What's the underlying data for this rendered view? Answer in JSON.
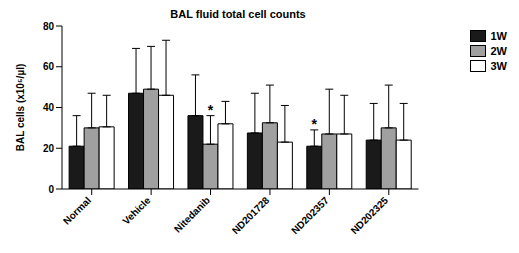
{
  "chart_data": {
    "type": "bar",
    "title": "BAL fluid total cell counts",
    "y_label": "BAL cells (x10⁵/µl)",
    "categories": [
      "Normal",
      "Vehicle",
      "Nitedanib",
      "ND201728",
      "ND202357",
      "ND202325"
    ],
    "series": [
      {
        "name": "1W",
        "color": "#1a1a1a",
        "values": [
          21,
          47,
          36,
          27.5,
          21,
          24
        ],
        "errors": [
          15,
          22,
          20,
          19.5,
          8,
          18
        ]
      },
      {
        "name": "2W",
        "color": "#a0a0a0",
        "values": [
          30,
          49,
          22,
          32.5,
          27,
          30
        ],
        "errors": [
          17,
          21,
          14,
          18.5,
          22,
          21
        ]
      },
      {
        "name": "3W",
        "color": "#ffffff",
        "values": [
          30.5,
          46,
          32,
          23,
          27,
          24
        ],
        "errors": [
          15.5,
          27,
          11,
          18,
          19,
          18
        ]
      }
    ],
    "ylim": [
      0,
      80
    ],
    "yticks": [
      0,
      20,
      40,
      60,
      80
    ],
    "annotations": [
      {
        "text": "*",
        "category": "Nitedanib",
        "series": "2W"
      },
      {
        "text": "*",
        "category": "ND202357",
        "series": "1W"
      }
    ],
    "legend": "right"
  }
}
